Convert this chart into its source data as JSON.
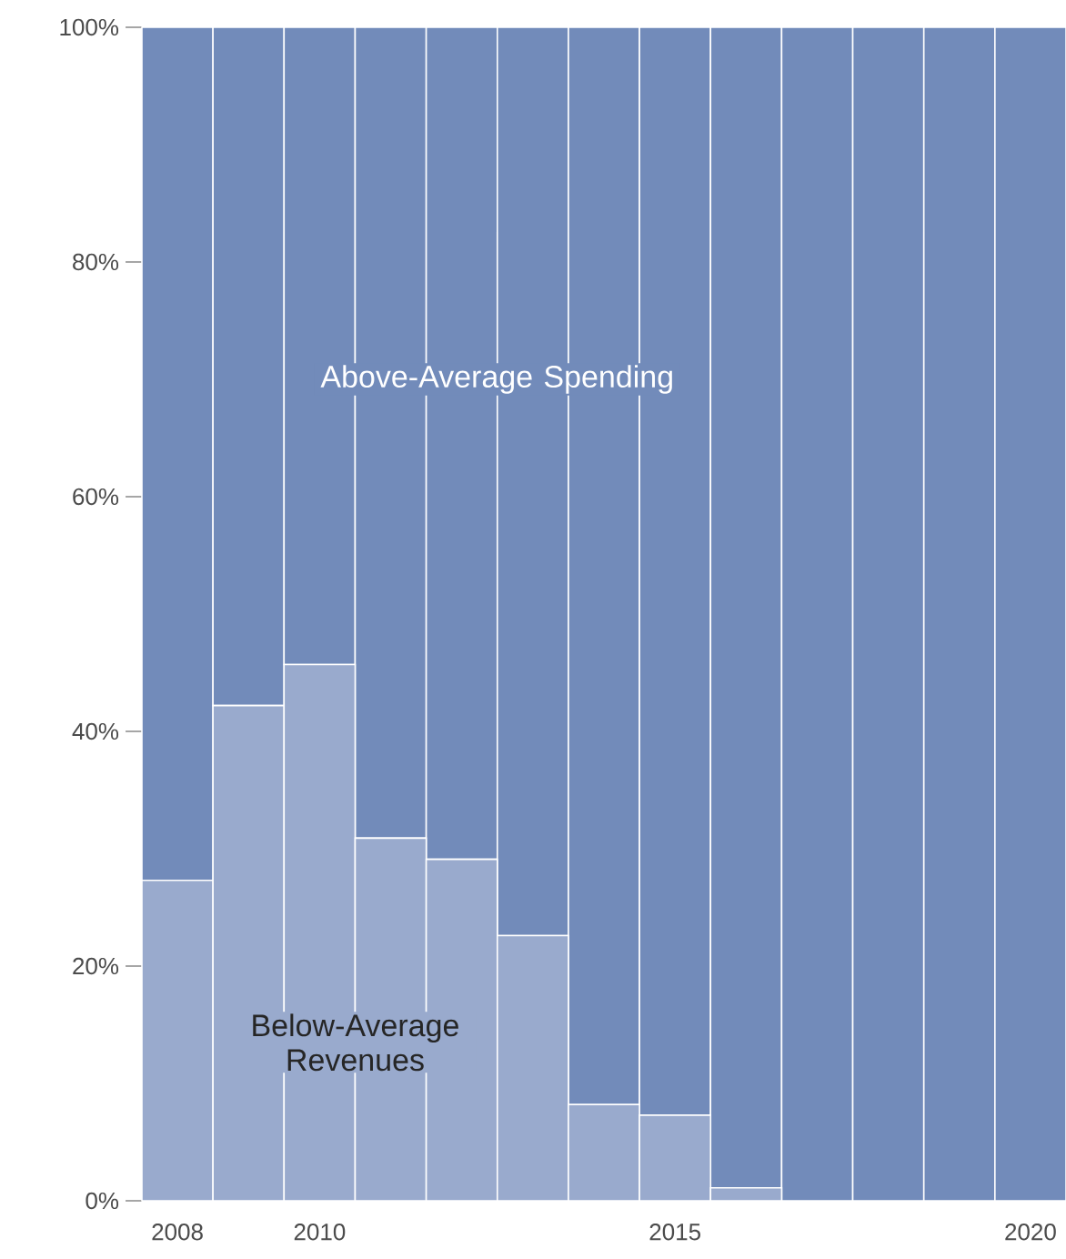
{
  "chart_data": {
    "type": "bar",
    "stacked": true,
    "x": [
      2008,
      2009,
      2010,
      2011,
      2012,
      2013,
      2014,
      2015,
      2016,
      2017,
      2018,
      2019,
      2020
    ],
    "series": [
      {
        "name": "Below-Average Revenues",
        "color": "#99aacd",
        "values": [
          27.3,
          42.2,
          45.7,
          30.9,
          29.1,
          22.6,
          8.2,
          7.3,
          1.1,
          0,
          0,
          0,
          0
        ]
      },
      {
        "name": "Above-Average Spending",
        "color": "#728bba",
        "values": [
          72.7,
          57.8,
          54.3,
          69.1,
          70.9,
          77.4,
          91.8,
          92.7,
          98.9,
          100,
          100,
          100,
          100
        ]
      }
    ],
    "xlim": [
      2007.5,
      2020.5
    ],
    "xticks": [
      2008,
      2010,
      2015,
      2020
    ],
    "ylim": [
      0,
      100
    ],
    "yticks": [
      {
        "value": 0,
        "label": "0%"
      },
      {
        "value": 20,
        "label": "20%"
      },
      {
        "value": 40,
        "label": "40%"
      },
      {
        "value": 60,
        "label": "60%"
      },
      {
        "value": 80,
        "label": "80%"
      },
      {
        "value": 100,
        "label": "100%"
      }
    ],
    "grid": false
  }
}
